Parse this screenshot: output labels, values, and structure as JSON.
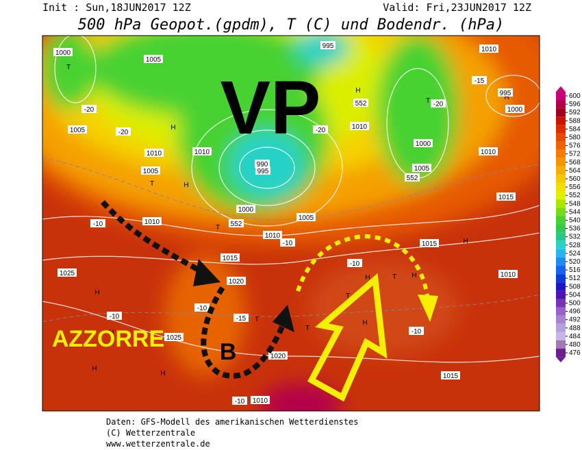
{
  "header": {
    "init": "Init : Sun,18JUN2017 12Z",
    "valid": "Valid: Fri,23JUN2017 12Z",
    "title": "500 hPa Geopot.(gpdm), T (C) und Bodendr. (hPa)"
  },
  "map": {
    "annotations": {
      "vp": "VP",
      "azzorre": "AZZORRE",
      "b": "B"
    },
    "labels": [
      "1000",
      "T",
      "1005",
      "-20",
      "1005",
      "-20",
      "H",
      "1010",
      "1005",
      "T",
      "H",
      "1010",
      "1010",
      "-10",
      "T",
      "1015",
      "1020",
      "1025",
      "H",
      "H",
      "-10",
      "1025",
      "H",
      "H",
      "-10",
      "-15",
      "T",
      "1020",
      "T",
      "T",
      "H",
      "H",
      "T",
      "H",
      "1015",
      "H",
      "1010",
      "1015",
      "1015",
      "-10",
      "-10",
      "1010",
      "1005",
      "1000",
      "995",
      "990",
      "1000",
      "1005",
      "1010",
      "H",
      "995",
      "1000",
      "T",
      "-20",
      "1010",
      "995",
      "1010",
      "-20",
      "H",
      "552",
      "552",
      "552",
      "-15",
      "-10",
      "-10",
      "1010"
    ]
  },
  "colorbar": {
    "ticks": [
      600,
      596,
      592,
      588,
      584,
      580,
      576,
      572,
      568,
      564,
      560,
      556,
      552,
      548,
      544,
      540,
      536,
      532,
      528,
      524,
      520,
      516,
      512,
      508,
      504,
      500,
      496,
      492,
      488,
      484,
      480,
      476
    ],
    "colors": [
      "#c8007a",
      "#b4004b",
      "#a0001e",
      "#c81400",
      "#dc2d00",
      "#e64b00",
      "#f06400",
      "#f57d00",
      "#f59600",
      "#f5af00",
      "#f5c800",
      "#f5dc00",
      "#e1f000",
      "#aae600",
      "#78dc14",
      "#46d232",
      "#32c850",
      "#28c88c",
      "#28d2c8",
      "#28b4f0",
      "#1e8cf0",
      "#1464f0",
      "#0a3cdc",
      "#1e14c8",
      "#5014b4",
      "#7832b4",
      "#9664c8",
      "#aa82d2",
      "#b4a0dc",
      "#c8b4e6",
      "#a078b4",
      "#6e1e8c"
    ]
  },
  "footer": {
    "line1": "Daten: GFS-Modell des amerikanischen Wetterdienstes",
    "line2": "(C) Wetterzentrale",
    "line3": "www.wetterzentrale.de"
  }
}
